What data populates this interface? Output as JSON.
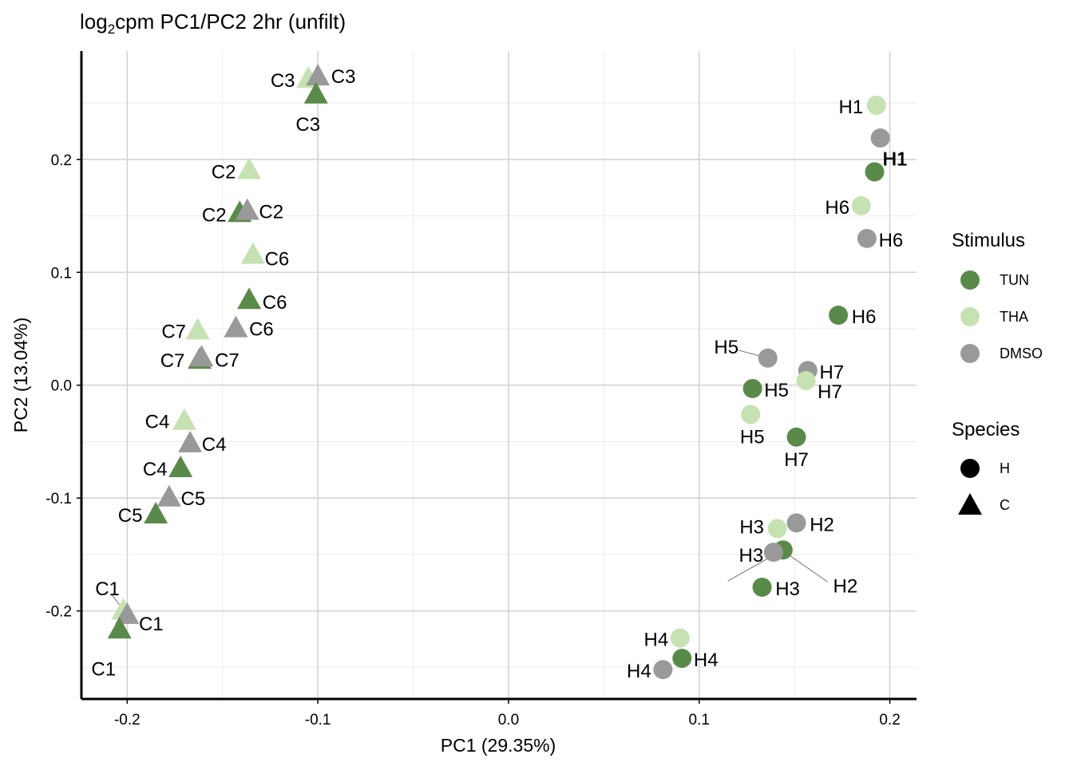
{
  "chart_data": {
    "type": "scatter",
    "title": {
      "main": "log",
      "sub": "2",
      "rest": "cpm PC1/PC2 2hr (unfilt)"
    },
    "xlabel": "PC1 (29.35%)",
    "ylabel": "PC2 (13.04%)",
    "xlim": [
      -0.224,
      0.214
    ],
    "ylim": [
      -0.278,
      0.296
    ],
    "x_ticks": [
      -0.2,
      -0.1,
      0.0,
      0.1,
      0.2
    ],
    "x_tick_labels": [
      "-0.2",
      "-0.1",
      "0.0",
      "0.1",
      "0.2"
    ],
    "y_ticks": [
      -0.2,
      -0.1,
      0.0,
      0.1,
      0.2
    ],
    "y_tick_labels": [
      "-0.2",
      "-0.1",
      "0.0",
      "0.1",
      "0.2"
    ],
    "grid": true,
    "colors": {
      "TUN": "#5a8a4a",
      "THA": "#c6e2b3",
      "DMSO": "#999999"
    },
    "legend": {
      "placement": "right",
      "stimulus_title": "Stimulus",
      "stimulus": [
        "TUN",
        "THA",
        "DMSO"
      ],
      "species_title": "Species",
      "species": [
        "H",
        "C"
      ]
    },
    "points": [
      {
        "label": "C3",
        "stimulus": "THA",
        "species": "C",
        "x": -0.105,
        "y": 0.272
      },
      {
        "label": "C3",
        "stimulus": "DMSO",
        "species": "C",
        "x": -0.1,
        "y": 0.274
      },
      {
        "label": "C3",
        "stimulus": "TUN",
        "species": "C",
        "x": -0.101,
        "y": 0.258
      },
      {
        "label": "C2",
        "stimulus": "THA",
        "species": "C",
        "x": -0.136,
        "y": 0.191
      },
      {
        "label": "C2",
        "stimulus": "TUN",
        "species": "C",
        "x": -0.141,
        "y": 0.153
      },
      {
        "label": "C2",
        "stimulus": "DMSO",
        "species": "C",
        "x": -0.137,
        "y": 0.155
      },
      {
        "label": "C6",
        "stimulus": "THA",
        "species": "C",
        "x": -0.134,
        "y": 0.116
      },
      {
        "label": "C6",
        "stimulus": "TUN",
        "species": "C",
        "x": -0.136,
        "y": 0.076
      },
      {
        "label": "C6",
        "stimulus": "DMSO",
        "species": "C",
        "x": -0.143,
        "y": 0.051
      },
      {
        "label": "C7",
        "stimulus": "THA",
        "species": "C",
        "x": -0.163,
        "y": 0.049
      },
      {
        "label": "C7",
        "stimulus": "TUN",
        "species": "C",
        "x": -0.162,
        "y": 0.023
      },
      {
        "label": "C7",
        "stimulus": "DMSO",
        "species": "C",
        "x": -0.161,
        "y": 0.025
      },
      {
        "label": "C4",
        "stimulus": "THA",
        "species": "C",
        "x": -0.17,
        "y": -0.031
      },
      {
        "label": "C4",
        "stimulus": "DMSO",
        "species": "C",
        "x": -0.167,
        "y": -0.051
      },
      {
        "label": "C4",
        "stimulus": "TUN",
        "species": "C",
        "x": -0.172,
        "y": -0.073
      },
      {
        "label": "C5",
        "stimulus": "DMSO",
        "species": "C",
        "x": -0.178,
        "y": -0.099
      },
      {
        "label": "C5",
        "stimulus": "TUN",
        "species": "C",
        "x": -0.185,
        "y": -0.114
      },
      {
        "label": "C1",
        "stimulus": "THA",
        "species": "C",
        "x": -0.202,
        "y": -0.199
      },
      {
        "label": "C1",
        "stimulus": "DMSO",
        "species": "C",
        "x": -0.2,
        "y": -0.203
      },
      {
        "label": "C1",
        "stimulus": "TUN",
        "species": "C",
        "x": -0.204,
        "y": -0.216
      },
      {
        "label": "H1",
        "stimulus": "THA",
        "species": "H",
        "x": 0.193,
        "y": 0.248
      },
      {
        "label": "H1",
        "stimulus": "DMSO",
        "species": "H",
        "x": 0.195,
        "y": 0.219
      },
      {
        "label": "H1",
        "stimulus": "TUN",
        "species": "H",
        "x": 0.192,
        "y": 0.189
      },
      {
        "label": "H6",
        "stimulus": "THA",
        "species": "H",
        "x": 0.185,
        "y": 0.159
      },
      {
        "label": "H6",
        "stimulus": "DMSO",
        "species": "H",
        "x": 0.188,
        "y": 0.13
      },
      {
        "label": "H6",
        "stimulus": "TUN",
        "species": "H",
        "x": 0.173,
        "y": 0.062
      },
      {
        "label": "H5",
        "stimulus": "DMSO",
        "species": "H",
        "x": 0.136,
        "y": 0.024
      },
      {
        "label": "H7",
        "stimulus": "DMSO",
        "species": "H",
        "x": 0.157,
        "y": 0.013
      },
      {
        "label": "H7",
        "stimulus": "THA",
        "species": "H",
        "x": 0.156,
        "y": 0.004
      },
      {
        "label": "H5",
        "stimulus": "TUN",
        "species": "H",
        "x": 0.128,
        "y": -0.003
      },
      {
        "label": "H5",
        "stimulus": "THA",
        "species": "H",
        "x": 0.127,
        "y": -0.026
      },
      {
        "label": "H7",
        "stimulus": "TUN",
        "species": "H",
        "x": 0.151,
        "y": -0.046
      },
      {
        "label": "H2",
        "stimulus": "DMSO",
        "species": "H",
        "x": 0.151,
        "y": -0.122
      },
      {
        "label": "H3",
        "stimulus": "THA",
        "species": "H",
        "x": 0.141,
        "y": -0.127
      },
      {
        "label": "H2",
        "stimulus": "TUN",
        "species": "H",
        "x": 0.144,
        "y": -0.146
      },
      {
        "label": "H3",
        "stimulus": "DMSO",
        "species": "H",
        "x": 0.139,
        "y": -0.148
      },
      {
        "label": "H3",
        "stimulus": "TUN",
        "species": "H",
        "x": 0.133,
        "y": -0.179
      },
      {
        "label": "H4",
        "stimulus": "THA",
        "species": "H",
        "x": 0.09,
        "y": -0.224
      },
      {
        "label": "H4",
        "stimulus": "TUN",
        "species": "H",
        "x": 0.091,
        "y": -0.242
      },
      {
        "label": "H4",
        "stimulus": "DMSO",
        "species": "H",
        "x": 0.081,
        "y": -0.252
      }
    ]
  }
}
